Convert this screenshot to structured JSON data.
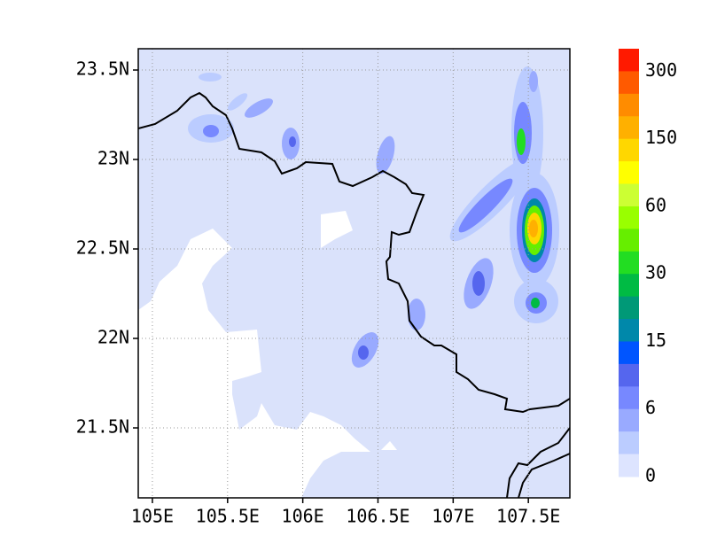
{
  "map": {
    "xlim": [
      104.906,
      107.776
    ],
    "ylim": [
      21.109,
      23.619
    ],
    "xticks": [
      {
        "value": 105,
        "label": "105E"
      },
      {
        "value": 105.5,
        "label": "105.5E"
      },
      {
        "value": 106,
        "label": "106E"
      },
      {
        "value": 106.5,
        "label": "106.5E"
      },
      {
        "value": 107,
        "label": "107E"
      },
      {
        "value": 107.5,
        "label": "107.5E"
      }
    ],
    "yticks": [
      {
        "value": 21.5,
        "label": "21.5N"
      },
      {
        "value": 22,
        "label": "22N"
      },
      {
        "value": 22.5,
        "label": "22.5N"
      },
      {
        "value": 23,
        "label": "23N"
      },
      {
        "value": 23.5,
        "label": "23.5N"
      }
    ],
    "grid": true,
    "colorbar": {
      "colors": [
        "#ff1a00",
        "#ff5a00",
        "#ff8c00",
        "#ffb000",
        "#ffd700",
        "#ffff00",
        "#ccff33",
        "#99ff00",
        "#66ee00",
        "#22dd22",
        "#00bb44",
        "#009977",
        "#0088aa",
        "#0055ff",
        "#5566ee",
        "#7788ff",
        "#99aaff",
        "#bbccff",
        "#dde4ff"
      ],
      "ticks": [
        300,
        150,
        60,
        30,
        15,
        6,
        0
      ]
    }
  }
}
